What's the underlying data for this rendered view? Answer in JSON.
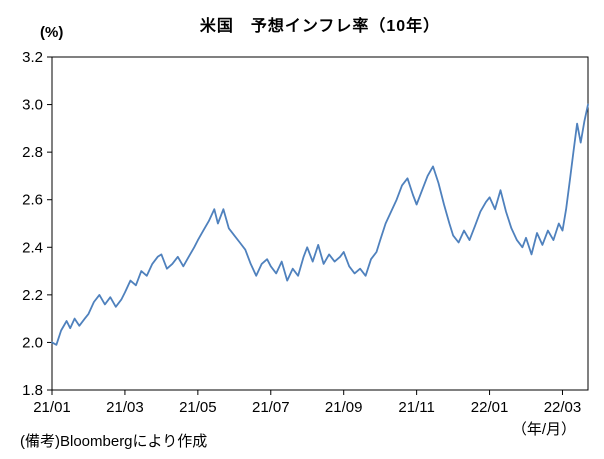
{
  "chart_data": {
    "type": "line",
    "title": "米国　予想インフレ率（10年）",
    "y_axis_unit": "(%)",
    "x_axis_unit": "（年/月）",
    "source_note": "(備考)Bloombergにより作成",
    "xlim": [
      0,
      14.7
    ],
    "ylim": [
      1.8,
      3.2
    ],
    "yticks": [
      1.8,
      2.0,
      2.2,
      2.4,
      2.6,
      2.8,
      3.0,
      3.2
    ],
    "ytick_labels": [
      "1.8",
      "2.0",
      "2.2",
      "2.4",
      "2.6",
      "2.8",
      "3.0",
      "3.2"
    ],
    "xticks": [
      0,
      2,
      4,
      6,
      8,
      10,
      12,
      14
    ],
    "xtick_labels": [
      "21/01",
      "21/03",
      "21/05",
      "21/07",
      "21/09",
      "21/11",
      "22/01",
      "22/03"
    ],
    "grid": false,
    "legend_position": "none",
    "line_color": "#4f81bd",
    "axis_color": "#000000",
    "series": [
      {
        "name": "予想インフレ率（10年）",
        "x": [
          0,
          0.12,
          0.25,
          0.4,
          0.5,
          0.62,
          0.75,
          0.9,
          1.0,
          1.15,
          1.3,
          1.45,
          1.6,
          1.75,
          1.9,
          2.0,
          2.15,
          2.3,
          2.45,
          2.6,
          2.75,
          2.9,
          3.0,
          3.15,
          3.3,
          3.45,
          3.6,
          3.75,
          3.9,
          4.0,
          4.15,
          4.3,
          4.45,
          4.55,
          4.7,
          4.85,
          5.0,
          5.15,
          5.3,
          5.45,
          5.6,
          5.75,
          5.9,
          6.0,
          6.15,
          6.3,
          6.45,
          6.6,
          6.75,
          6.9,
          7.0,
          7.15,
          7.3,
          7.45,
          7.6,
          7.75,
          7.9,
          8.0,
          8.15,
          8.3,
          8.45,
          8.6,
          8.75,
          8.9,
          9.0,
          9.15,
          9.3,
          9.45,
          9.6,
          9.75,
          9.9,
          10.0,
          10.15,
          10.3,
          10.45,
          10.6,
          10.75,
          10.9,
          11.0,
          11.15,
          11.3,
          11.45,
          11.6,
          11.75,
          11.9,
          12.0,
          12.15,
          12.3,
          12.45,
          12.6,
          12.75,
          12.9,
          13.0,
          13.15,
          13.3,
          13.45,
          13.6,
          13.75,
          13.9,
          14.0,
          14.1,
          14.2,
          14.3,
          14.4,
          14.5,
          14.6,
          14.7
        ],
        "y": [
          2.0,
          1.99,
          2.05,
          2.09,
          2.06,
          2.1,
          2.07,
          2.1,
          2.12,
          2.17,
          2.2,
          2.16,
          2.19,
          2.15,
          2.18,
          2.21,
          2.26,
          2.24,
          2.3,
          2.28,
          2.33,
          2.36,
          2.37,
          2.31,
          2.33,
          2.36,
          2.32,
          2.36,
          2.4,
          2.43,
          2.47,
          2.51,
          2.56,
          2.5,
          2.56,
          2.48,
          2.45,
          2.42,
          2.39,
          2.33,
          2.28,
          2.33,
          2.35,
          2.32,
          2.29,
          2.34,
          2.26,
          2.31,
          2.28,
          2.36,
          2.4,
          2.34,
          2.41,
          2.33,
          2.37,
          2.34,
          2.36,
          2.38,
          2.32,
          2.29,
          2.31,
          2.28,
          2.35,
          2.38,
          2.43,
          2.5,
          2.55,
          2.6,
          2.66,
          2.69,
          2.62,
          2.58,
          2.64,
          2.7,
          2.74,
          2.67,
          2.58,
          2.5,
          2.45,
          2.42,
          2.47,
          2.43,
          2.49,
          2.55,
          2.59,
          2.61,
          2.56,
          2.64,
          2.55,
          2.48,
          2.43,
          2.4,
          2.44,
          2.37,
          2.46,
          2.41,
          2.47,
          2.43,
          2.5,
          2.47,
          2.56,
          2.68,
          2.8,
          2.92,
          2.84,
          2.93,
          3.0
        ]
      }
    ]
  }
}
